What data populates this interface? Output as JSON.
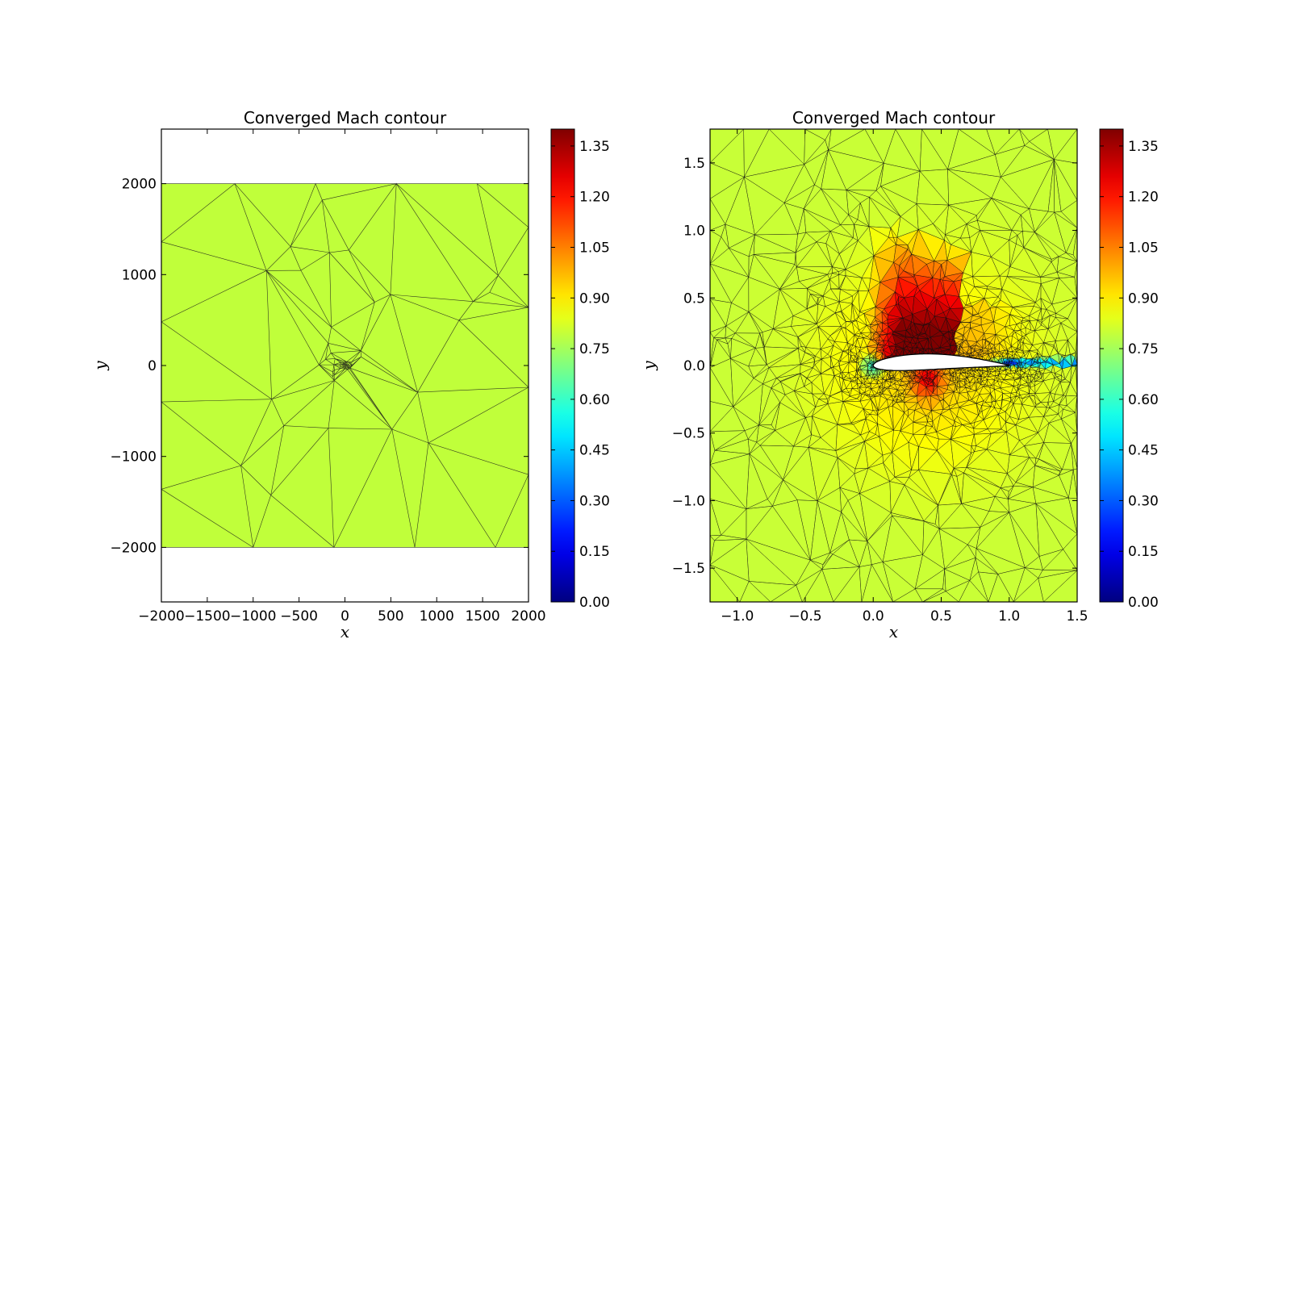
{
  "chart_data": [
    {
      "type": "heatmap",
      "subtype": "triangulated-mesh-contour",
      "title": "Converged Mach contour",
      "xlabel": "x",
      "ylabel": "y",
      "xlim": [
        -2000,
        2000
      ],
      "ylim": [
        -2600,
        2600
      ],
      "xticks": [
        -2000,
        -1500,
        -1000,
        -500,
        0,
        500,
        1000,
        1500,
        2000
      ],
      "xtick_labels": [
        "−2000",
        "−1500",
        "−1000",
        "−500",
        "0",
        "500",
        "1000",
        "1500",
        "2000"
      ],
      "yticks": [
        -2000,
        -1000,
        0,
        1000,
        2000
      ],
      "ytick_labels": [
        "−2000",
        "−1000",
        "0",
        "1000",
        "2000"
      ],
      "domain": {
        "xmin": -2000,
        "xmax": 2000,
        "ymin": -2000,
        "ymax": 2000
      },
      "freestream_mach": 0.8,
      "colorbar": {
        "colormap": "jet",
        "range": [
          0,
          1.4
        ],
        "ticks": [
          0.0,
          0.15,
          0.3,
          0.45,
          0.6,
          0.75,
          0.9,
          1.05,
          1.2,
          1.35
        ],
        "tick_labels": [
          "0.00",
          "0.15",
          "0.30",
          "0.45",
          "0.60",
          "0.75",
          "0.90",
          "1.05",
          "1.20",
          "1.35"
        ]
      }
    },
    {
      "type": "heatmap",
      "subtype": "triangulated-mesh-contour",
      "title": "Converged Mach contour",
      "xlabel": "x",
      "ylabel": "y",
      "xlim": [
        -1.2,
        1.5
      ],
      "ylim": [
        -1.75,
        1.75
      ],
      "xticks": [
        -1.0,
        -0.5,
        0.0,
        0.5,
        1.0,
        1.5
      ],
      "xtick_labels": [
        "−1.0",
        "−0.5",
        "0.0",
        "0.5",
        "1.0",
        "1.5"
      ],
      "yticks": [
        -1.5,
        -1.0,
        -0.5,
        0.0,
        0.5,
        1.0,
        1.5
      ],
      "ytick_labels": [
        "−1.5",
        "−1.0",
        "−0.5",
        "0.0",
        "0.5",
        "1.0",
        "1.5"
      ],
      "airfoil": {
        "leading_edge_x": 0.0,
        "trailing_edge_x": 1.0
      },
      "features": [
        "supersonic pocket above upper surface peaking near 1.35",
        "shock near x≈0.6",
        "low-Mach wake downstream of trailing edge"
      ],
      "colorbar": {
        "colormap": "jet",
        "range": [
          0,
          1.4
        ],
        "ticks": [
          0.0,
          0.15,
          0.3,
          0.45,
          0.6,
          0.75,
          0.9,
          1.05,
          1.2,
          1.35
        ],
        "tick_labels": [
          "0.00",
          "0.15",
          "0.30",
          "0.45",
          "0.60",
          "0.75",
          "0.90",
          "1.05",
          "1.20",
          "1.35"
        ]
      }
    }
  ]
}
